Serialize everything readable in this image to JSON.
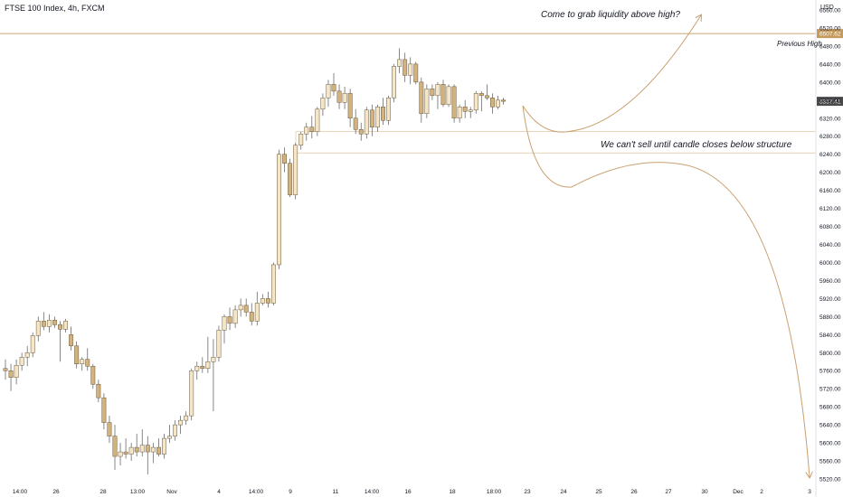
{
  "header": {
    "title": "FTSE 100 Index, 4h, FXCM"
  },
  "axis": {
    "currency": "USD"
  },
  "colors": {
    "candle_up": "#f5e6c8",
    "candle_down": "#d2b27e",
    "wick": "#6b6b6b",
    "level_line": "#b8894c",
    "level_badge": "#c69a5b",
    "price_badge": "#4a4a4a",
    "arrow": "#c9a070",
    "zone": "#d8b888"
  },
  "annotations": {
    "liquidity": "Come to grab liquidity above high?",
    "structure": "We can't sell until candle closes below structure",
    "previous_high_label": "Previous High"
  },
  "chart_data": {
    "type": "candlestick",
    "title": "FTSE 100 Index, 4h, FXCM",
    "ylabel": "USD",
    "ylim": [
      5500,
      6570
    ],
    "y_ticks": [
      5520,
      5560,
      5600,
      5640,
      5680,
      5720,
      5760,
      5800,
      5840,
      5880,
      5920,
      5960,
      6000,
      6040,
      6080,
      6120,
      6160,
      6200,
      6240,
      6280,
      6320,
      6360,
      6400,
      6440,
      6480,
      6520,
      6560
    ],
    "x_tick_labels": [
      "14:00",
      "26",
      "28",
      "13:00",
      "Nov",
      "4",
      "14:00",
      "9",
      "11",
      "14:00",
      "16",
      "18",
      "18:00",
      "23",
      "24",
      "25",
      "26",
      "27",
      "30",
      "Dec",
      "2",
      "3"
    ],
    "previous_high": 6507.62,
    "previous_high_label_text": "6507.62",
    "last_price": 6357.41,
    "last_price_label_text": "6357.41",
    "structure_zone": [
      6243,
      6290
    ],
    "candles": [
      [
        5765,
        5785,
        5740,
        5760
      ],
      [
        5760,
        5775,
        5715,
        5745
      ],
      [
        5745,
        5785,
        5730,
        5772
      ],
      [
        5772,
        5800,
        5760,
        5790
      ],
      [
        5790,
        5815,
        5770,
        5800
      ],
      [
        5800,
        5845,
        5790,
        5838
      ],
      [
        5838,
        5880,
        5825,
        5870
      ],
      [
        5870,
        5890,
        5850,
        5858
      ],
      [
        5858,
        5885,
        5845,
        5872
      ],
      [
        5872,
        5880,
        5855,
        5862
      ],
      [
        5862,
        5870,
        5780,
        5852
      ],
      [
        5852,
        5875,
        5845,
        5870
      ],
      [
        5840,
        5858,
        5805,
        5815
      ],
      [
        5815,
        5825,
        5765,
        5775
      ],
      [
        5775,
        5790,
        5760,
        5785
      ],
      [
        5785,
        5810,
        5760,
        5770
      ],
      [
        5770,
        5775,
        5720,
        5730
      ],
      [
        5730,
        5740,
        5690,
        5700
      ],
      [
        5700,
        5710,
        5630,
        5645
      ],
      [
        5645,
        5660,
        5600,
        5615
      ],
      [
        5615,
        5640,
        5540,
        5570
      ],
      [
        5570,
        5600,
        5550,
        5580
      ],
      [
        5580,
        5610,
        5565,
        5575
      ],
      [
        5575,
        5600,
        5560,
        5590
      ],
      [
        5590,
        5620,
        5570,
        5580
      ],
      [
        5580,
        5630,
        5570,
        5595
      ],
      [
        5595,
        5615,
        5530,
        5580
      ],
      [
        5580,
        5600,
        5555,
        5590
      ],
      [
        5590,
        5610,
        5570,
        5575
      ],
      [
        5575,
        5620,
        5565,
        5610
      ],
      [
        5610,
        5640,
        5600,
        5615
      ],
      [
        5615,
        5650,
        5605,
        5640
      ],
      [
        5640,
        5660,
        5620,
        5650
      ],
      [
        5650,
        5670,
        5640,
        5660
      ],
      [
        5660,
        5765,
        5650,
        5760
      ],
      [
        5760,
        5780,
        5740,
        5770
      ],
      [
        5770,
        5790,
        5755,
        5765
      ],
      [
        5765,
        5835,
        5755,
        5780
      ],
      [
        5780,
        5830,
        5670,
        5790
      ],
      [
        5790,
        5860,
        5780,
        5850
      ],
      [
        5850,
        5885,
        5820,
        5880
      ],
      [
        5880,
        5900,
        5850,
        5865
      ],
      [
        5865,
        5905,
        5855,
        5895
      ],
      [
        5895,
        5920,
        5880,
        5905
      ],
      [
        5905,
        5920,
        5880,
        5890
      ],
      [
        5890,
        5910,
        5860,
        5870
      ],
      [
        5870,
        5935,
        5860,
        5910
      ],
      [
        5910,
        5930,
        5905,
        5920
      ],
      [
        5920,
        5935,
        5900,
        5910
      ],
      [
        5910,
        6000,
        5905,
        5995
      ],
      [
        5995,
        6250,
        5985,
        6240
      ],
      [
        6240,
        6255,
        6200,
        6220
      ],
      [
        6220,
        6230,
        6145,
        6150
      ],
      [
        6150,
        6265,
        6140,
        6260
      ],
      [
        6260,
        6290,
        6250,
        6285
      ],
      [
        6285,
        6310,
        6270,
        6300
      ],
      [
        6300,
        6325,
        6275,
        6290
      ],
      [
        6290,
        6345,
        6280,
        6340
      ],
      [
        6340,
        6375,
        6325,
        6365
      ],
      [
        6365,
        6405,
        6345,
        6395
      ],
      [
        6395,
        6420,
        6370,
        6380
      ],
      [
        6380,
        6395,
        6340,
        6355
      ],
      [
        6355,
        6390,
        6340,
        6375
      ],
      [
        6375,
        6385,
        6300,
        6320
      ],
      [
        6320,
        6340,
        6285,
        6295
      ],
      [
        6295,
        6310,
        6270,
        6285
      ],
      [
        6285,
        6345,
        6275,
        6338
      ],
      [
        6338,
        6350,
        6280,
        6300
      ],
      [
        6300,
        6350,
        6290,
        6345
      ],
      [
        6345,
        6365,
        6305,
        6315
      ],
      [
        6315,
        6370,
        6305,
        6365
      ],
      [
        6365,
        6440,
        6355,
        6435
      ],
      [
        6435,
        6475,
        6420,
        6450
      ],
      [
        6450,
        6465,
        6400,
        6415
      ],
      [
        6415,
        6455,
        6395,
        6440
      ],
      [
        6440,
        6445,
        6395,
        6400
      ],
      [
        6400,
        6410,
        6310,
        6330
      ],
      [
        6330,
        6395,
        6320,
        6385
      ],
      [
        6385,
        6395,
        6360,
        6370
      ],
      [
        6370,
        6400,
        6340,
        6395
      ],
      [
        6395,
        6405,
        6345,
        6350
      ],
      [
        6350,
        6395,
        6345,
        6390
      ],
      [
        6390,
        6395,
        6310,
        6320
      ],
      [
        6320,
        6350,
        6310,
        6345
      ],
      [
        6345,
        6360,
        6320,
        6335
      ],
      [
        6335,
        6345,
        6320,
        6338
      ],
      [
        6338,
        6380,
        6330,
        6375
      ],
      [
        6375,
        6380,
        6335,
        6370
      ],
      [
        6370,
        6395,
        6360,
        6365
      ],
      [
        6365,
        6375,
        6330,
        6345
      ],
      [
        6345,
        6370,
        6340,
        6360
      ],
      [
        6360,
        6365,
        6350,
        6357.41
      ]
    ]
  }
}
